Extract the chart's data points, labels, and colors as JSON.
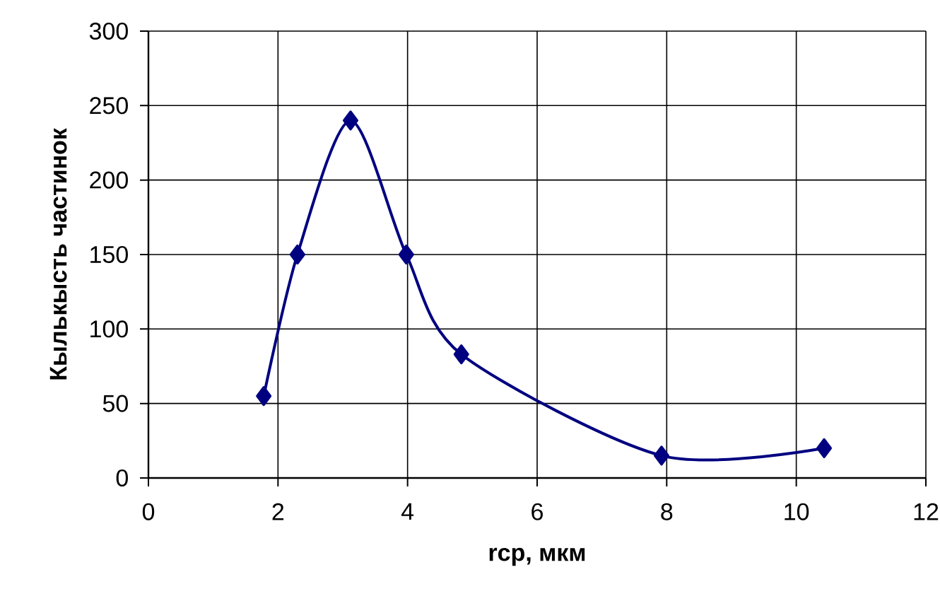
{
  "chart_data": {
    "type": "line",
    "xlabel": "rcp, мкм",
    "ylabel": "Кылькысть частинок",
    "x": [
      1.78,
      2.3,
      3.12,
      3.98,
      4.83,
      7.92,
      10.43
    ],
    "series": [
      {
        "color": "#000080",
        "values": [
          55,
          150,
          240,
          150,
          83,
          15,
          20
        ]
      }
    ],
    "xlim": [
      0,
      12
    ],
    "xticks": [
      0,
      2,
      4,
      6,
      8,
      10,
      12
    ],
    "ylim": [
      0,
      300
    ],
    "yticks": [
      0,
      50,
      100,
      150,
      200,
      250,
      300
    ],
    "grid": true,
    "marker": "diamond",
    "line_style": "solid"
  }
}
